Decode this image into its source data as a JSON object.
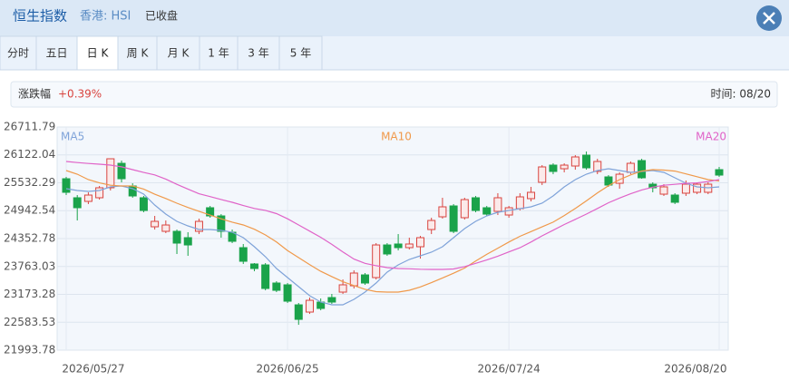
{
  "header": {
    "title": "恒生指数",
    "market": "香港: HSI",
    "status": "已收盘"
  },
  "tabs": [
    "分时",
    "五日",
    "日 K",
    "周 K",
    "月 K",
    "1 年",
    "3 年",
    "5 年"
  ],
  "active_tab": 2,
  "info": {
    "change_label": "涨跌幅",
    "change_value": "+0.39%",
    "time_label": "时间: 08/20"
  },
  "chart_data": {
    "type": "candlestick",
    "categories": [
      "2026/05/27",
      null,
      null,
      null,
      null,
      null,
      null,
      null,
      null,
      null,
      null,
      null,
      null,
      null,
      null,
      null,
      null,
      null,
      null,
      null,
      "2026/06/25",
      null,
      null,
      null,
      null,
      null,
      null,
      null,
      null,
      null,
      null,
      null,
      null,
      null,
      null,
      null,
      null,
      null,
      null,
      null,
      "2026/07/24",
      null,
      null,
      null,
      null,
      null,
      null,
      null,
      null,
      null,
      null,
      null,
      null,
      null,
      null,
      null,
      null,
      null,
      null,
      "2026/08/20"
    ],
    "open": [
      25618,
      25216,
      25139,
      25216,
      25427,
      25944,
      25465,
      25216,
      24602,
      24506,
      24506,
      24372,
      24506,
      25005,
      24832,
      24487,
      24161,
      23816,
      23796,
      23413,
      23375,
      22952,
      22799,
      23010,
      23106,
      23221,
      23355,
      23585,
      23528,
      24218,
      24238,
      24161,
      24180,
      24544,
      24813,
      25043,
      24794,
      25216,
      25005,
      24928,
      24851,
      24986,
      25197,
      25542,
      25906,
      25829,
      25887,
      26117,
      25772,
      25657,
      25522,
      25753,
      26002,
      25503,
      25292,
      25273,
      25312,
      25331,
      25331,
      25810
    ],
    "high": [
      25657,
      25273,
      25331,
      25465,
      26040,
      26002,
      25522,
      25254,
      24832,
      24736,
      24544,
      24487,
      24775,
      25043,
      24870,
      24544,
      24238,
      23835,
      23835,
      23451,
      23413,
      22991,
      23106,
      23087,
      23183,
      23489,
      23681,
      23624,
      24257,
      24257,
      24448,
      24372,
      24410,
      24794,
      25216,
      25082,
      25216,
      25254,
      25043,
      25312,
      25043,
      25312,
      25446,
      25906,
      25944,
      25944,
      26117,
      26194,
      26040,
      25695,
      25753,
      25983,
      26040,
      25542,
      25503,
      25312,
      25580,
      25542,
      25542,
      25868
    ],
    "low": [
      25273,
      24736,
      25082,
      25177,
      25369,
      25542,
      25216,
      24909,
      24544,
      24468,
      24027,
      23988,
      24448,
      24794,
      24372,
      24257,
      23816,
      23662,
      23259,
      23221,
      22991,
      22530,
      22760,
      22837,
      22972,
      23183,
      23298,
      23375,
      23489,
      23988,
      24103,
      24122,
      23930,
      24448,
      24775,
      24468,
      24755,
      24909,
      24832,
      24851,
      24794,
      24947,
      25139,
      25484,
      25714,
      25753,
      25810,
      25810,
      25714,
      25446,
      25407,
      25714,
      25618,
      25331,
      25254,
      25082,
      25254,
      25292,
      25292,
      25657
    ],
    "close": [
      25331,
      25005,
      25273,
      25427,
      26040,
      25618,
      25254,
      24947,
      24717,
      24640,
      24257,
      24218,
      24717,
      24832,
      24506,
      24295,
      23873,
      23720,
      23298,
      23259,
      23029,
      22645,
      23048,
      22876,
      23010,
      23375,
      23624,
      23413,
      24218,
      24027,
      24161,
      24238,
      24372,
      24736,
      25024,
      24506,
      25177,
      24947,
      24870,
      25216,
      25005,
      25235,
      25331,
      25868,
      25772,
      25906,
      26079,
      25849,
      25983,
      25484,
      25714,
      25944,
      25638,
      25427,
      25446,
      25120,
      25503,
      25503,
      25503,
      25695
    ],
    "up_color": "#d9443f",
    "down_color": "#1aa34a",
    "series": [
      {
        "name": "MA5",
        "color": "#7fa3d9",
        "values": [
          25407,
          25369,
          25350,
          25369,
          25446,
          25465,
          25407,
          25292,
          25062,
          24870,
          24717,
          24621,
          24544,
          24544,
          24525,
          24487,
          24372,
          24180,
          23969,
          23720,
          23528,
          23336,
          23144,
          23010,
          22952,
          22952,
          23068,
          23221,
          23413,
          23643,
          23796,
          23911,
          23988,
          24065,
          24180,
          24372,
          24564,
          24717,
          24832,
          24909,
          24947,
          24986,
          25024,
          25101,
          25254,
          25446,
          25599,
          25714,
          25791,
          25829,
          25791,
          25753,
          25772,
          25791,
          25753,
          25638,
          25522,
          25446,
          25427,
          25446
        ]
      },
      {
        "name": "MA10",
        "color": "#f0994a",
        "values": [
          25791,
          25715,
          25600,
          25530,
          25480,
          25465,
          25465,
          25400,
          25290,
          25200,
          25100,
          25010,
          24930,
          24850,
          24770,
          24700,
          24640,
          24550,
          24430,
          24280,
          24100,
          23950,
          23800,
          23660,
          23550,
          23440,
          23360,
          23280,
          23230,
          23221,
          23221,
          23260,
          23330,
          23420,
          23520,
          23620,
          23730,
          23880,
          24020,
          24150,
          24280,
          24400,
          24500,
          24600,
          24700,
          24840,
          24990,
          25150,
          25320,
          25470,
          25600,
          25700,
          25780,
          25810,
          25800,
          25780,
          25720,
          25660,
          25600,
          25570
        ]
      },
      {
        "name": "MA20",
        "color": "#e063c8",
        "values": [
          25983,
          25960,
          25940,
          25925,
          25906,
          25870,
          25810,
          25750,
          25700,
          25610,
          25500,
          25400,
          25300,
          25240,
          25180,
          25120,
          25050,
          24990,
          24950,
          24880,
          24770,
          24640,
          24510,
          24380,
          24230,
          24070,
          23920,
          23830,
          23780,
          23740,
          23720,
          23715,
          23705,
          23700,
          23700,
          23710,
          23760,
          23830,
          23900,
          23980,
          24070,
          24160,
          24280,
          24410,
          24530,
          24650,
          24760,
          24870,
          24990,
          25110,
          25210,
          25300,
          25380,
          25440,
          25480,
          25500,
          25520,
          25530,
          25560,
          25599
        ]
      }
    ],
    "ylim": [
      21993.78,
      26711.79
    ],
    "yticks": [
      26711.79,
      26122.04,
      25532.29,
      24942.54,
      24352.78,
      23763.03,
      23173.28,
      22583.53,
      21993.78
    ],
    "grid": true
  }
}
